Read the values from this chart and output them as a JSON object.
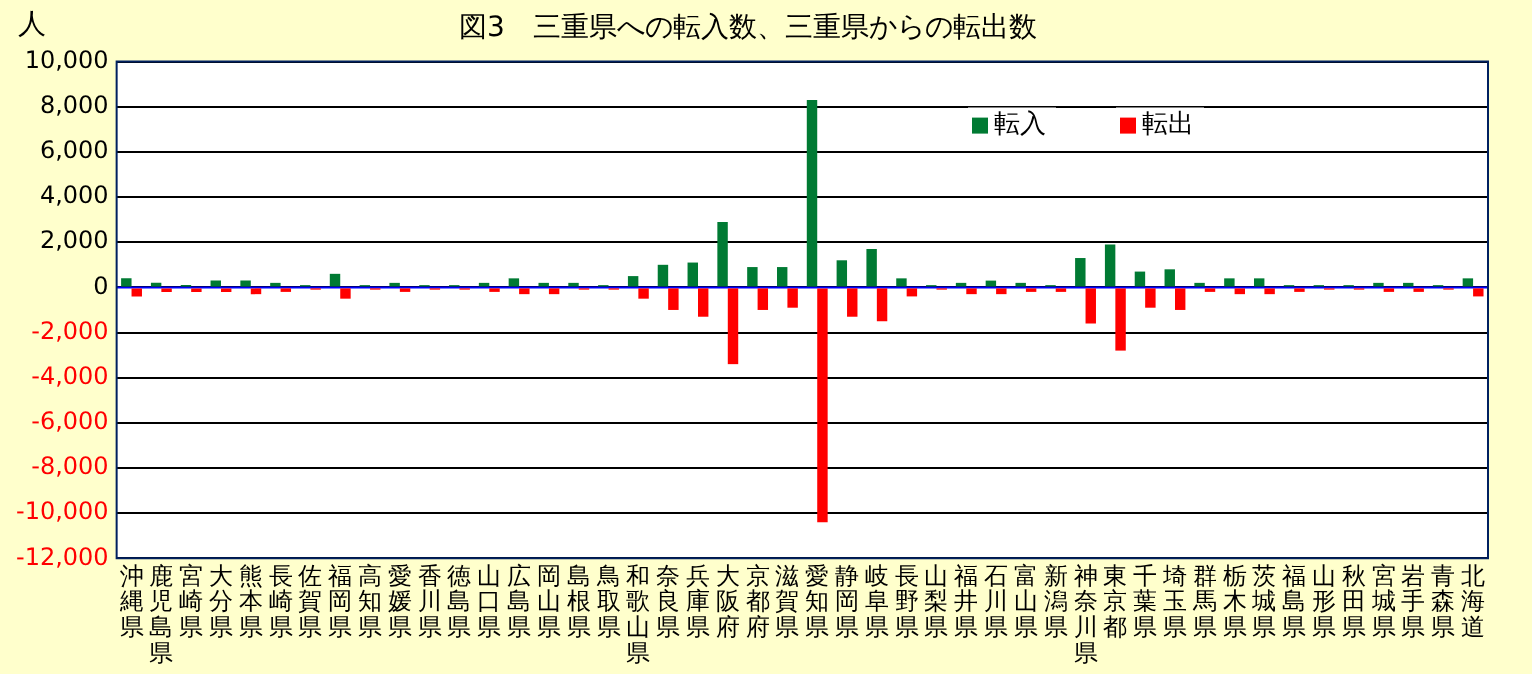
{
  "chart_data": {
    "type": "bar",
    "title": "図3　三重県への転入数、三重県からの転出数",
    "ylabel": "人",
    "categories": [
      "沖縄県",
      "鹿児島県",
      "宮崎県",
      "大分県",
      "熊本県",
      "長崎県",
      "佐賀県",
      "福岡県",
      "高知県",
      "愛媛県",
      "香川県",
      "徳島県",
      "山口県",
      "広島県",
      "岡山県",
      "島根県",
      "鳥取県",
      "和歌山県",
      "奈良県",
      "兵庫県",
      "大阪府",
      "京都府",
      "滋賀県",
      "愛知県",
      "静岡県",
      "岐阜県",
      "長野県",
      "山梨県",
      "福井県",
      "石川県",
      "富山県",
      "新潟県",
      "神奈川県",
      "東京都",
      "千葉県",
      "埼玉県",
      "群馬県",
      "栃木県",
      "茨城県",
      "福島県",
      "山形県",
      "秋田県",
      "宮城県",
      "岩手県",
      "青森県",
      "北海道"
    ],
    "series": [
      {
        "name": "転入",
        "color": "#007a33",
        "values": [
          400,
          200,
          100,
          300,
          300,
          200,
          100,
          600,
          100,
          200,
          100,
          100,
          200,
          400,
          200,
          200,
          100,
          500,
          1000,
          1100,
          2900,
          900,
          900,
          8300,
          1200,
          1700,
          400,
          100,
          200,
          300,
          200,
          100,
          1300,
          1900,
          700,
          800,
          200,
          400,
          400,
          100,
          100,
          100,
          200,
          200,
          100,
          400
        ]
      },
      {
        "name": "転出",
        "color": "#ff0000",
        "values": [
          -400,
          -200,
          -200,
          -200,
          -300,
          -200,
          -100,
          -500,
          -100,
          -200,
          -100,
          -100,
          -200,
          -300,
          -300,
          -100,
          -100,
          -500,
          -1000,
          -1300,
          -3400,
          -1000,
          -900,
          -10400,
          -1300,
          -1500,
          -400,
          -100,
          -300,
          -300,
          -200,
          -200,
          -1600,
          -2800,
          -900,
          -1000,
          -200,
          -300,
          -300,
          -200,
          -100,
          -100,
          -200,
          -200,
          -100,
          -400
        ]
      }
    ],
    "ylim": [
      -12000,
      10000
    ],
    "yticks": [
      {
        "value": -12000,
        "label": "-12,000"
      },
      {
        "value": -10000,
        "label": "-10,000"
      },
      {
        "value": -8000,
        "label": "-8,000"
      },
      {
        "value": -6000,
        "label": "-6,000"
      },
      {
        "value": -4000,
        "label": "-4,000"
      },
      {
        "value": -2000,
        "label": "-2,000"
      },
      0,
      {
        "value": 2000,
        "label": "2,000"
      },
      {
        "value": 4000,
        "label": "4,000"
      },
      {
        "value": 6000,
        "label": "6,000"
      },
      {
        "value": 8000,
        "label": "8,000"
      },
      {
        "value": 10000,
        "label": "10,000"
      }
    ],
    "ref_lines": [
      {
        "axis": "y",
        "value": 0,
        "color": "#0000ff"
      }
    ],
    "grid": "y",
    "legend": "top right"
  }
}
